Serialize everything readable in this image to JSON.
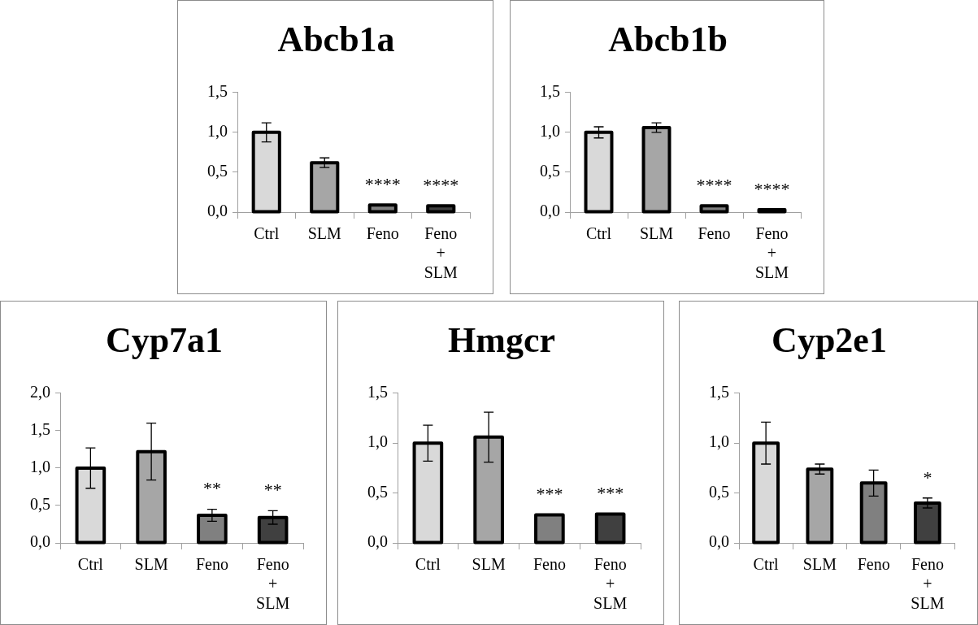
{
  "chart_data": [
    {
      "type": "bar",
      "title": "Abcb1a",
      "categories": [
        "Ctrl",
        "SLM",
        "Feno",
        "Feno + SLM"
      ],
      "values": [
        1.0,
        0.62,
        0.09,
        0.08
      ],
      "errors": [
        0.12,
        0.06,
        null,
        null
      ],
      "colors": [
        "#d9d9d9",
        "#a6a6a6",
        "#808080",
        "#404040"
      ],
      "ylim": [
        0,
        1.5
      ],
      "yticks": [
        {
          "value": 0,
          "label": "0,0"
        },
        {
          "value": 0.5,
          "label": "0,5"
        },
        {
          "value": 1,
          "label": "1,0"
        },
        {
          "value": 1.5,
          "label": "1,5"
        }
      ],
      "grid": false,
      "legend": false,
      "annotations": [
        {
          "text": "****",
          "x": "Feno",
          "y": 0.09
        },
        {
          "text": "****",
          "x": "Feno + SLM",
          "y": 0.08
        }
      ]
    },
    {
      "type": "bar",
      "title": "Abcb1b",
      "categories": [
        "Ctrl",
        "SLM",
        "Feno",
        "Feno + SLM"
      ],
      "values": [
        1.0,
        1.06,
        0.08,
        0.03
      ],
      "errors": [
        0.07,
        0.06,
        null,
        null
      ],
      "colors": [
        "#d9d9d9",
        "#a6a6a6",
        "#808080",
        "#404040"
      ],
      "ylim": [
        0,
        1.5
      ],
      "yticks": [
        {
          "value": 0,
          "label": "0,0"
        },
        {
          "value": 0.5,
          "label": "0,5"
        },
        {
          "value": 1,
          "label": "1,0"
        },
        {
          "value": 1.5,
          "label": "1,5"
        }
      ],
      "grid": false,
      "legend": false,
      "annotations": [
        {
          "text": "****",
          "x": "Feno",
          "y": 0.08
        },
        {
          "text": "****",
          "x": "Feno + SLM",
          "y": 0.03
        }
      ]
    },
    {
      "type": "bar",
      "title": "Cyp7a1",
      "categories": [
        "Ctrl",
        "SLM",
        "Feno",
        "Feno + SLM"
      ],
      "values": [
        1.0,
        1.22,
        0.37,
        0.34
      ],
      "errors": [
        0.27,
        0.38,
        0.08,
        0.09
      ],
      "colors": [
        "#d9d9d9",
        "#a6a6a6",
        "#808080",
        "#404040"
      ],
      "ylim": [
        0,
        2
      ],
      "yticks": [
        {
          "value": 0,
          "label": "0,0"
        },
        {
          "value": 0.5,
          "label": "0,5"
        },
        {
          "value": 1,
          "label": "1,0"
        },
        {
          "value": 1.5,
          "label": "1,5"
        },
        {
          "value": 2,
          "label": "2,0"
        }
      ],
      "grid": false,
      "legend": false,
      "annotations": [
        {
          "text": "**",
          "x": "Feno",
          "y": 0.37
        },
        {
          "text": "**",
          "x": "Feno + SLM",
          "y": 0.34
        }
      ]
    },
    {
      "type": "bar",
      "title": "Hmgcr",
      "categories": [
        "Ctrl",
        "SLM",
        "Feno",
        "Feno + SLM"
      ],
      "values": [
        1.0,
        1.06,
        0.28,
        0.29
      ],
      "errors": [
        0.18,
        0.25,
        null,
        null
      ],
      "colors": [
        "#d9d9d9",
        "#a6a6a6",
        "#808080",
        "#404040"
      ],
      "ylim": [
        0,
        1.5
      ],
      "yticks": [
        {
          "value": 0,
          "label": "0,0"
        },
        {
          "value": 0.5,
          "label": "0,5"
        },
        {
          "value": 1,
          "label": "1,0"
        },
        {
          "value": 1.5,
          "label": "1,5"
        }
      ],
      "grid": false,
      "legend": false,
      "annotations": [
        {
          "text": "***",
          "x": "Feno",
          "y": 0.28
        },
        {
          "text": "***",
          "x": "Feno + SLM",
          "y": 0.29
        }
      ]
    },
    {
      "type": "bar",
      "title": "Cyp2e1",
      "categories": [
        "Ctrl",
        "SLM",
        "Feno",
        "Feno + SLM"
      ],
      "values": [
        1.0,
        0.74,
        0.6,
        0.4
      ],
      "errors": [
        0.21,
        0.05,
        0.13,
        0.05
      ],
      "colors": [
        "#d9d9d9",
        "#a6a6a6",
        "#808080",
        "#404040"
      ],
      "ylim": [
        0,
        1.5
      ],
      "yticks": [
        {
          "value": 0,
          "label": "0,0"
        },
        {
          "value": 0.5,
          "label": "0,5"
        },
        {
          "value": 1,
          "label": "1,0"
        },
        {
          "value": 1.5,
          "label": "1,5"
        }
      ],
      "grid": false,
      "legend": false,
      "annotations": [
        {
          "text": "*",
          "x": "Feno + SLM",
          "y": 0.4
        }
      ]
    }
  ]
}
